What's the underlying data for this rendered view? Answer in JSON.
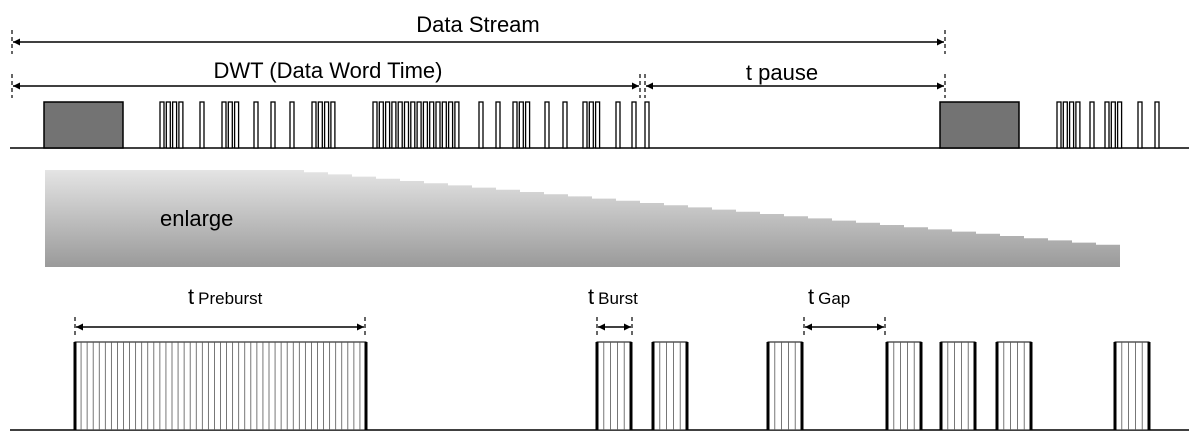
{
  "labels": {
    "data_stream": "Data Stream",
    "dwt": "DWT (Data  Word Time)",
    "pause": "t pause",
    "enlarge": "enlarge",
    "preburst": {
      "symbol": "t",
      "name": "Preburst"
    },
    "burst": {
      "symbol": "t",
      "name": "Burst"
    },
    "gap": {
      "symbol": "t",
      "name": "Gap"
    }
  }
}
